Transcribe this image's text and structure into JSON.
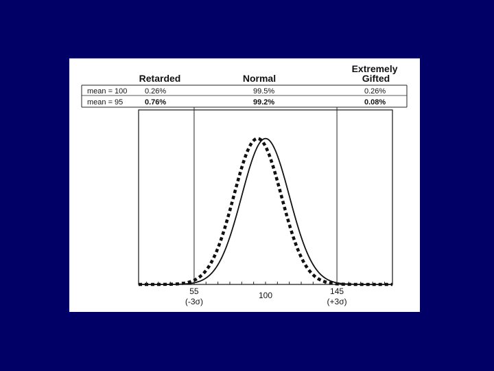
{
  "chart_data": {
    "type": "line",
    "title": "",
    "xlabel": "",
    "ylabel": "",
    "xlim": [
      20,
      180
    ],
    "ylim": [
      0,
      1.05
    ],
    "grid": false,
    "category_headers": [
      "Retarded",
      "Normal",
      "Extremely Gifted"
    ],
    "table_rows": [
      {
        "label": "mean = 100",
        "retarded": "0.26%",
        "normal": "99.5%",
        "gifted": "0.26%"
      },
      {
        "label": "mean = 95",
        "retarded": "0.76%",
        "normal": "99.2%",
        "gifted": "0.08%"
      }
    ],
    "x_ticks": [
      {
        "value": 55,
        "label": "55",
        "sublabel": "(-3σ)"
      },
      {
        "value": 100,
        "label": "100",
        "sublabel": ""
      },
      {
        "value": 145,
        "label": "145",
        "sublabel": "(+3σ)"
      }
    ],
    "series": [
      {
        "style": "solid",
        "mean": 100,
        "sd": 15
      },
      {
        "style": "dashed",
        "mean": 95,
        "sd": 15
      }
    ]
  }
}
